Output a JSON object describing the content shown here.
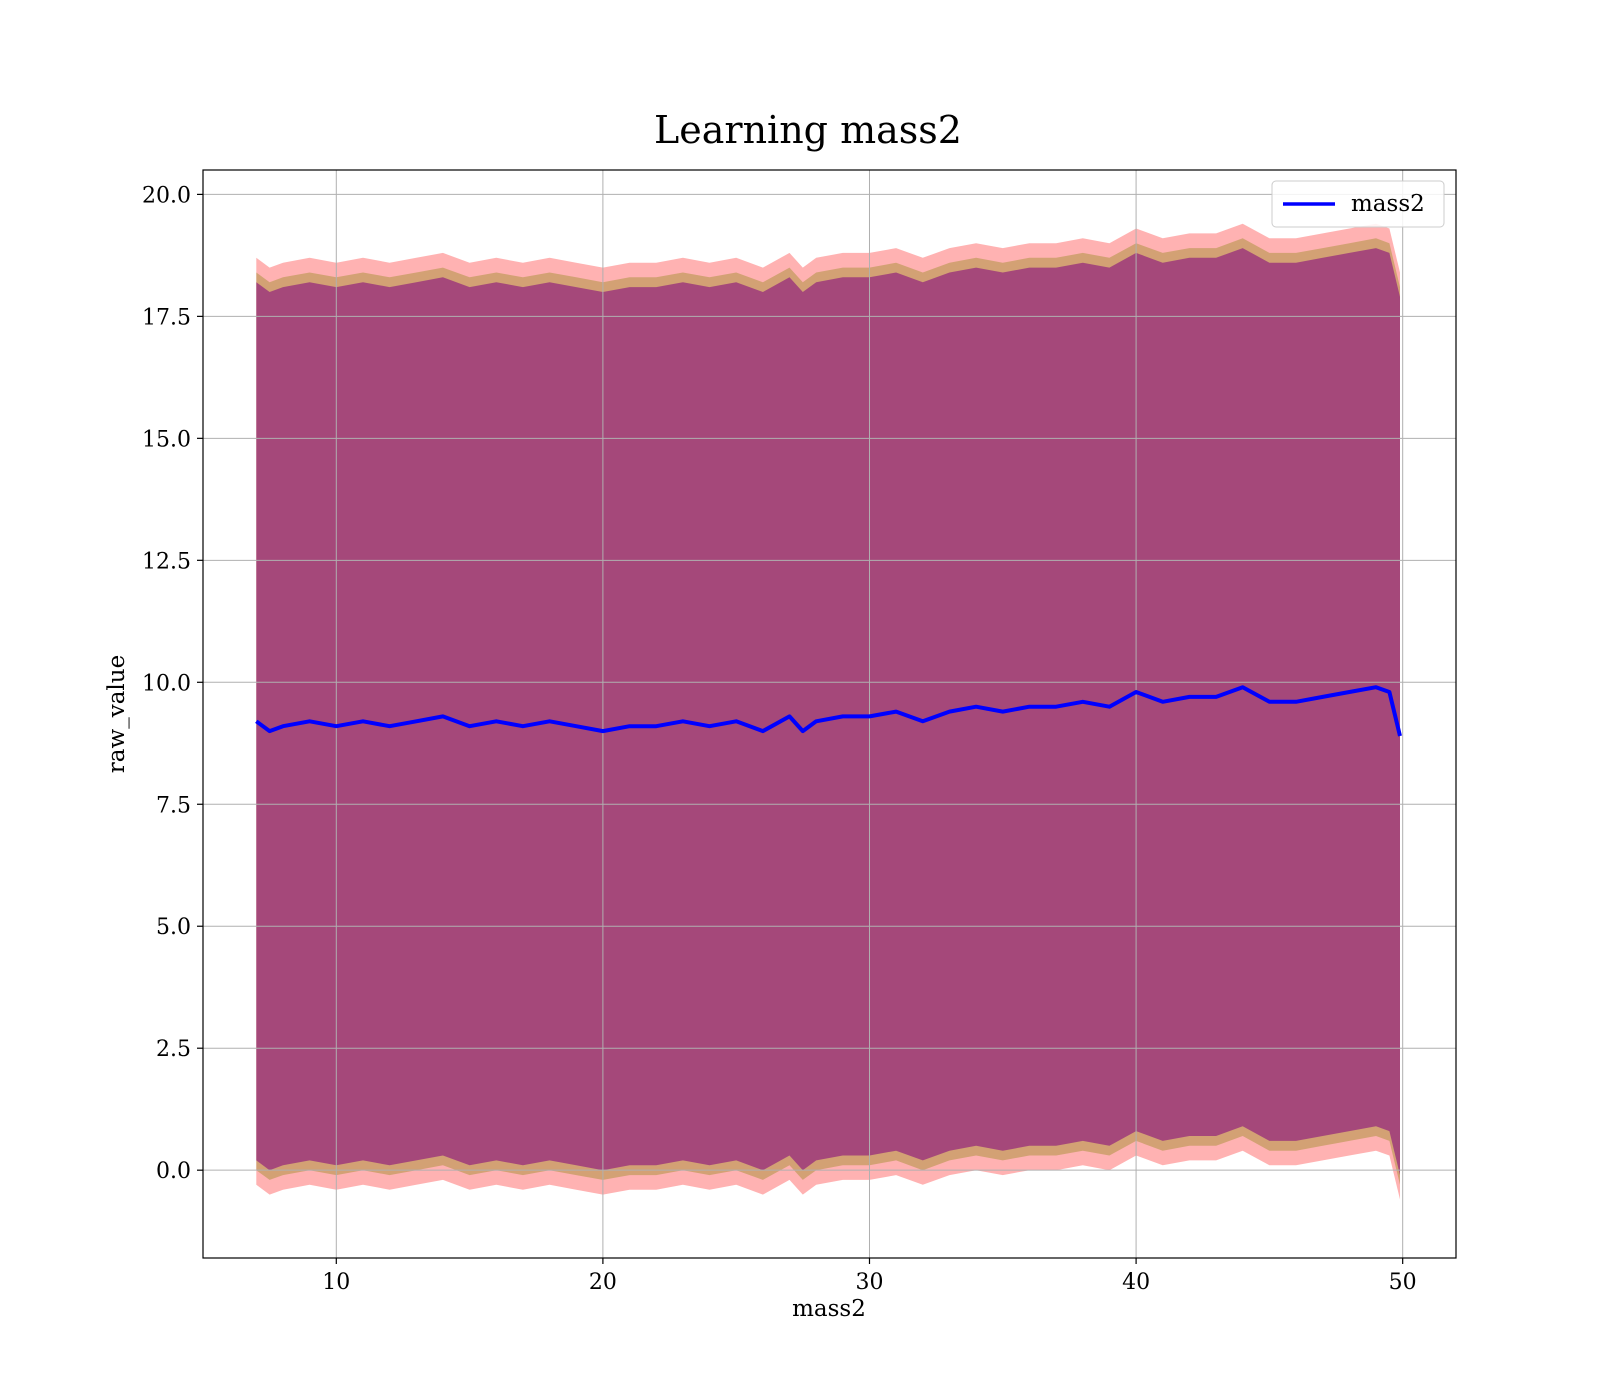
{
  "chart_data": {
    "type": "line",
    "title": "Learning mass2",
    "xlabel": "mass2",
    "ylabel": "raw_value",
    "xlim": [
      5,
      52
    ],
    "ylim": [
      -1.8,
      20.5
    ],
    "grid": true,
    "x_ticks": [
      10,
      20,
      30,
      40,
      50
    ],
    "x_tick_labels": [
      "10",
      "20",
      "30",
      "40",
      "50"
    ],
    "y_ticks": [
      0,
      2.5,
      5,
      7.5,
      10,
      12.5,
      15,
      17.5,
      20
    ],
    "y_tick_labels": [
      "0.0",
      "2.5",
      "5.0",
      "7.5",
      "10.0",
      "12.5",
      "15.0",
      "17.5",
      "20.0"
    ],
    "legend": {
      "position": "top-right",
      "entries": [
        "mass2"
      ]
    },
    "colors": {
      "line": "#0000ff",
      "band_outer": "#ff0000",
      "band_mid": "#808000",
      "band_inner": "#800080"
    },
    "series": [
      {
        "name": "mass2",
        "x": [
          7.0,
          7.5,
          8.0,
          9.0,
          10.0,
          11.0,
          12.0,
          13.0,
          14.0,
          15.0,
          16.0,
          17.0,
          18.0,
          19.0,
          20.0,
          21.0,
          22.0,
          23.0,
          24.0,
          25.0,
          26.0,
          27.0,
          27.5,
          28.0,
          29.0,
          30.0,
          31.0,
          32.0,
          33.0,
          34.0,
          35.0,
          36.0,
          37.0,
          38.0,
          39.0,
          40.0,
          41.0,
          42.0,
          43.0,
          44.0,
          45.0,
          46.0,
          47.0,
          48.0,
          49.0,
          49.5,
          49.9
        ],
        "y": [
          9.2,
          9.0,
          9.1,
          9.2,
          9.1,
          9.2,
          9.1,
          9.2,
          9.3,
          9.1,
          9.2,
          9.1,
          9.2,
          9.1,
          9.0,
          9.1,
          9.1,
          9.2,
          9.1,
          9.2,
          9.0,
          9.3,
          9.0,
          9.2,
          9.3,
          9.3,
          9.4,
          9.2,
          9.4,
          9.5,
          9.4,
          9.5,
          9.5,
          9.6,
          9.5,
          9.8,
          9.6,
          9.7,
          9.7,
          9.9,
          9.6,
          9.6,
          9.7,
          9.8,
          9.9,
          9.8,
          8.9
        ]
      }
    ],
    "bands": [
      {
        "name": "outer",
        "upper_offset": 9.5,
        "lower_offset": 9.5
      },
      {
        "name": "mid",
        "upper_offset": 9.2,
        "lower_offset": 9.2
      },
      {
        "name": "inner",
        "upper_offset": 9.0,
        "lower_offset": 9.0
      }
    ]
  }
}
